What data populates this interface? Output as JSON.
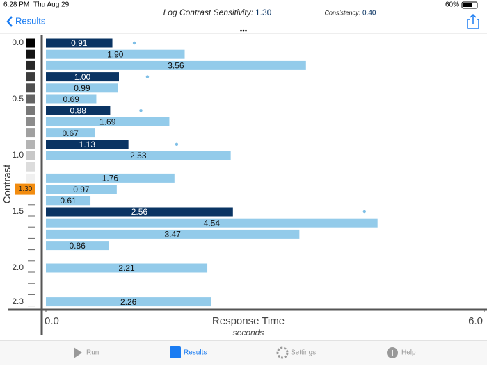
{
  "status": {
    "time": "6:28 PM",
    "date": "Thu Aug 29",
    "battery": "60%"
  },
  "nav": {
    "back": "Results",
    "title": "Log Contrast Sensitivity:",
    "title_value": "1.30",
    "consistency_label": "Consistency:",
    "consistency_value": "0.40"
  },
  "tabs": [
    "Run",
    "Results",
    "Settings",
    "Help"
  ],
  "chart_data": {
    "type": "bar",
    "orientation": "horizontal",
    "x_label": "Response Time",
    "x_sublabel": "seconds",
    "y_label": "Contrast",
    "categories": [
      "0.0",
      null,
      null,
      null,
      null,
      "0.5",
      null,
      null,
      null,
      null,
      "1.0",
      null,
      null,
      null,
      null,
      "1.5",
      null,
      null,
      null,
      null,
      "2.0",
      null,
      null,
      "2.3"
    ],
    "threshold": {
      "value": 1.3,
      "label": "1.30"
    },
    "threshold_color": "#f28c0f",
    "xlim": [
      0,
      6
    ],
    "xticks": [
      {
        "value": 0,
        "label": "0.0"
      },
      {
        "value": 6,
        "label": "6.0"
      }
    ],
    "series": [
      {
        "color": "#0a3463",
        "values": [
          0.91,
          null,
          null,
          1.0,
          null,
          null,
          0.88,
          null,
          null,
          1.13,
          null,
          null,
          null,
          null,
          null,
          2.56,
          null,
          null,
          null,
          null,
          null,
          null,
          null,
          null
        ],
        "value_labels": [
          "0.91",
          null,
          null,
          "1.00",
          null,
          null,
          "0.88",
          null,
          null,
          "1.13",
          null,
          null,
          null,
          null,
          null,
          "2.56",
          null,
          null,
          null,
          null,
          null,
          null,
          null,
          null
        ]
      },
      {
        "color": "#93cbea",
        "values": [
          null,
          1.9,
          3.56,
          null,
          0.99,
          0.69,
          null,
          1.69,
          0.67,
          null,
          2.53,
          null,
          1.76,
          0.97,
          0.61,
          null,
          4.54,
          3.47,
          0.86,
          null,
          2.21,
          null,
          null,
          2.26
        ],
        "value_labels": [
          null,
          "1.90",
          "3.56",
          null,
          "0.99",
          "0.69",
          null,
          "1.69",
          "0.67",
          null,
          "2.53",
          null,
          "1.76",
          "0.97",
          "0.61",
          null,
          "4.54",
          "3.47",
          "0.86",
          null,
          "2.21",
          null,
          null,
          "2.26"
        ]
      },
      {
        "type": "scatter",
        "color": "#7fbfe6",
        "values": [
          1.21,
          null,
          null,
          1.39,
          null,
          null,
          1.3,
          null,
          null,
          1.79,
          null,
          null,
          null,
          null,
          null,
          4.36,
          null,
          null,
          null,
          null,
          null,
          null,
          null,
          null
        ]
      }
    ]
  }
}
